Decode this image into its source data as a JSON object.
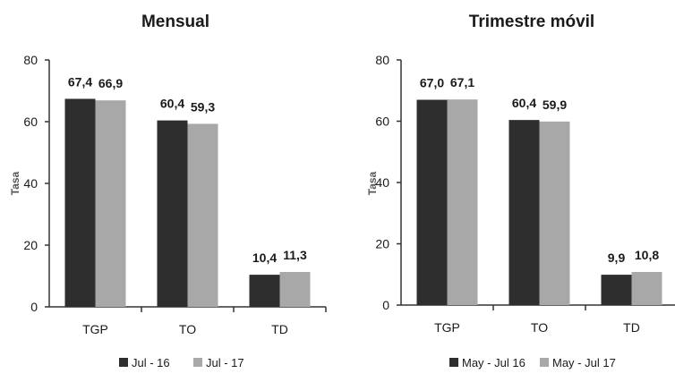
{
  "chart_data": [
    {
      "type": "bar",
      "title": "Mensual",
      "ylabel": "Tasa",
      "xlabel": "",
      "categories": [
        "TGP",
        "TO",
        "TD"
      ],
      "series": [
        {
          "name": "Jul - 16",
          "values": [
            67.4,
            60.4,
            10.4
          ],
          "labels": [
            "67,4",
            "60,4",
            "10,4"
          ],
          "color": "#2e2e2e"
        },
        {
          "name": "Jul - 17",
          "values": [
            66.9,
            59.3,
            11.3
          ],
          "labels": [
            "66,9",
            "59,3",
            "11,3"
          ],
          "color": "#a8a8a8"
        }
      ],
      "ylim": [
        0,
        80
      ],
      "yticks": [
        0,
        20,
        40,
        60,
        80
      ],
      "legend_position": "bottom",
      "grid": false
    },
    {
      "type": "bar",
      "title": "Trimestre móvil",
      "ylabel": "Tasa",
      "xlabel": "",
      "categories": [
        "TGP",
        "TO",
        "TD"
      ],
      "series": [
        {
          "name": "May - Jul 16",
          "values": [
            67.0,
            60.4,
            9.9
          ],
          "labels": [
            "67,0",
            "60,4",
            "9,9"
          ],
          "color": "#2e2e2e"
        },
        {
          "name": "May - Jul 17",
          "values": [
            67.1,
            59.9,
            10.8
          ],
          "labels": [
            "67,1",
            "59,9",
            "10,8"
          ],
          "color": "#a8a8a8"
        }
      ],
      "ylim": [
        0,
        80
      ],
      "yticks": [
        0,
        20,
        40,
        60,
        80
      ],
      "legend_position": "bottom",
      "grid": false
    }
  ]
}
